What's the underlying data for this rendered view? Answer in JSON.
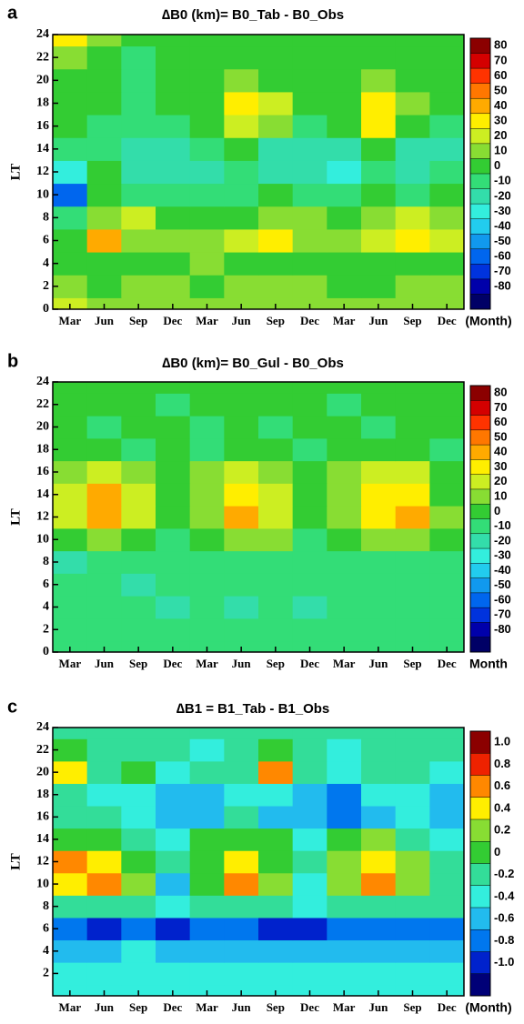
{
  "chart_data": [
    {
      "type": "contour",
      "panel_label": "a",
      "title": "∆B0 (km)= B0_Tab - B0_Obs",
      "ylabel": "LT",
      "xlabel": "(Month)",
      "categories": [
        "Mar",
        "Jun",
        "Sep",
        "Dec",
        "Mar",
        "Jun",
        "Sep",
        "Dec",
        "Mar",
        "Jun",
        "Sep",
        "Dec"
      ],
      "y": [
        0,
        2,
        4,
        6,
        8,
        10,
        12,
        14,
        16,
        18,
        20,
        22,
        24
      ],
      "z": [
        [
          20,
          10,
          10,
          10,
          10,
          10,
          10,
          10,
          10,
          10,
          10,
          10
        ],
        [
          10,
          0,
          10,
          10,
          0,
          10,
          10,
          10,
          0,
          0,
          10,
          10
        ],
        [
          0,
          0,
          0,
          0,
          10,
          0,
          0,
          0,
          0,
          0,
          0,
          0
        ],
        [
          0,
          40,
          10,
          10,
          10,
          20,
          30,
          10,
          10,
          20,
          30,
          20
        ],
        [
          -10,
          10,
          20,
          0,
          0,
          0,
          10,
          10,
          0,
          10,
          20,
          10
        ],
        [
          -60,
          0,
          -10,
          -10,
          -10,
          -10,
          0,
          -10,
          -10,
          0,
          -10,
          0
        ],
        [
          -30,
          0,
          -20,
          -20,
          -20,
          -10,
          -20,
          -20,
          -30,
          -10,
          -20,
          -10
        ],
        [
          -10,
          -10,
          -20,
          -20,
          -10,
          0,
          -20,
          -20,
          -20,
          0,
          -20,
          -20
        ],
        [
          0,
          -10,
          -10,
          -10,
          0,
          20,
          10,
          -10,
          0,
          30,
          0,
          -10
        ],
        [
          0,
          0,
          -10,
          0,
          0,
          30,
          20,
          0,
          0,
          30,
          10,
          0
        ],
        [
          0,
          0,
          -10,
          0,
          0,
          10,
          0,
          0,
          0,
          10,
          0,
          0
        ],
        [
          10,
          0,
          -10,
          0,
          0,
          0,
          0,
          0,
          0,
          0,
          0,
          0
        ],
        [
          30,
          10,
          0,
          0,
          0,
          0,
          0,
          0,
          0,
          0,
          0,
          0
        ]
      ],
      "ylim": [
        0,
        24
      ],
      "yticks": [
        0,
        2,
        4,
        6,
        8,
        10,
        12,
        14,
        16,
        18,
        20,
        22,
        24
      ],
      "colorbar": {
        "ticks": [
          80,
          70,
          60,
          50,
          40,
          30,
          20,
          10,
          0,
          -10,
          -20,
          -30,
          -40,
          -50,
          -60,
          -70,
          -80
        ],
        "colors": [
          "#8b0000",
          "#d40000",
          "#ff3300",
          "#ff7700",
          "#ffaa00",
          "#ffee00",
          "#ccee22",
          "#88dd33",
          "#33cc33",
          "#33dd77",
          "#33ddaa",
          "#33eedd",
          "#22ccee",
          "#1199ee",
          "#0066ee",
          "#0033dd",
          "#0000aa",
          "#000066"
        ]
      }
    },
    {
      "type": "contour",
      "panel_label": "b",
      "title": "∆B0 (km)= B0_Gul - B0_Obs",
      "ylabel": "LT",
      "xlabel": "Month",
      "categories": [
        "Mar",
        "Jun",
        "Sep",
        "Dec",
        "Mar",
        "Jun",
        "Sep",
        "Dec",
        "Mar",
        "Jun",
        "Sep",
        "Dec"
      ],
      "y": [
        0,
        2,
        4,
        6,
        8,
        10,
        12,
        14,
        16,
        18,
        20,
        22,
        24
      ],
      "z": [
        [
          -10,
          -10,
          -10,
          -10,
          -10,
          -10,
          -10,
          -10,
          -10,
          -10,
          -10,
          -10
        ],
        [
          -10,
          -10,
          -10,
          -10,
          -10,
          -10,
          -10,
          -10,
          -10,
          -10,
          -10,
          -10
        ],
        [
          -10,
          -10,
          -10,
          -20,
          -10,
          -20,
          -10,
          -20,
          -10,
          -10,
          -10,
          -10
        ],
        [
          -10,
          -10,
          -20,
          -10,
          -10,
          -10,
          -10,
          -10,
          -10,
          -10,
          -10,
          -10
        ],
        [
          -20,
          -10,
          -10,
          -10,
          -10,
          -10,
          -10,
          -10,
          -10,
          -10,
          -10,
          -10
        ],
        [
          0,
          10,
          0,
          -10,
          0,
          10,
          10,
          -10,
          0,
          10,
          10,
          0
        ],
        [
          20,
          40,
          20,
          0,
          10,
          40,
          20,
          0,
          10,
          30,
          40,
          10
        ],
        [
          20,
          40,
          20,
          0,
          10,
          30,
          20,
          0,
          10,
          30,
          30,
          0
        ],
        [
          10,
          20,
          10,
          0,
          10,
          20,
          10,
          0,
          10,
          20,
          20,
          0
        ],
        [
          0,
          0,
          -10,
          0,
          -10,
          0,
          0,
          -10,
          0,
          0,
          0,
          -10
        ],
        [
          0,
          -10,
          0,
          0,
          -10,
          0,
          -10,
          0,
          0,
          -10,
          0,
          0
        ],
        [
          0,
          0,
          0,
          -10,
          0,
          0,
          0,
          0,
          -10,
          0,
          0,
          0
        ],
        [
          0,
          0,
          0,
          0,
          0,
          0,
          0,
          0,
          0,
          0,
          0,
          0
        ]
      ],
      "ylim": [
        0,
        24
      ],
      "yticks": [
        0,
        2,
        4,
        6,
        8,
        10,
        12,
        14,
        16,
        18,
        20,
        22,
        24
      ],
      "colorbar": {
        "ticks": [
          80,
          70,
          60,
          50,
          40,
          30,
          20,
          10,
          0,
          -10,
          -20,
          -30,
          -40,
          -50,
          -60,
          -70,
          -80
        ],
        "colors": [
          "#8b0000",
          "#d40000",
          "#ff3300",
          "#ff7700",
          "#ffaa00",
          "#ffee00",
          "#ccee22",
          "#88dd33",
          "#33cc33",
          "#33dd77",
          "#33ddaa",
          "#33eedd",
          "#22ccee",
          "#1199ee",
          "#0066ee",
          "#0033dd",
          "#0000aa",
          "#000066"
        ]
      }
    },
    {
      "type": "contour",
      "panel_label": "c",
      "title": "∆B1 = B1_Tab - B1_Obs",
      "ylabel": "LT",
      "xlabel": "(Month)",
      "categories": [
        "Mar",
        "Jun",
        "Sep",
        "Dec",
        "Mar",
        "Jun",
        "Sep",
        "Dec",
        "Mar",
        "Jun",
        "Sep",
        "Dec"
      ],
      "y": [
        0,
        2,
        4,
        6,
        8,
        10,
        12,
        14,
        16,
        18,
        20,
        22,
        24
      ],
      "z": [
        [
          -0.3,
          -0.3,
          -0.3,
          -0.3,
          -0.3,
          -0.3,
          -0.3,
          -0.3,
          -0.3,
          -0.3,
          -0.3,
          -0.3
        ],
        [
          -0.3,
          -0.4,
          -0.3,
          -0.3,
          -0.3,
          -0.3,
          -0.3,
          -0.3,
          -0.3,
          -0.3,
          -0.3,
          -0.3
        ],
        [
          -0.5,
          -0.5,
          -0.4,
          -0.5,
          -0.5,
          -0.5,
          -0.6,
          -0.5,
          -0.5,
          -0.5,
          -0.5,
          -0.5
        ],
        [
          -0.7,
          -0.9,
          -0.7,
          -0.9,
          -0.8,
          -0.7,
          -0.9,
          -0.9,
          -0.8,
          -0.7,
          -0.7,
          -0.7
        ],
        [
          -0.1,
          -0.1,
          -0.2,
          -0.4,
          -0.1,
          -0.1,
          -0.2,
          -0.3,
          -0.1,
          -0.1,
          -0.2,
          -0.2
        ],
        [
          0.5,
          0.7,
          0.2,
          -0.5,
          0.1,
          0.6,
          0.2,
          -0.3,
          0.2,
          0.7,
          0.3,
          -0.1
        ],
        [
          0.7,
          0.5,
          0.1,
          -0.2,
          0.1,
          0.4,
          0.1,
          -0.2,
          0.2,
          0.5,
          0.2,
          -0.2
        ],
        [
          0.1,
          0.1,
          -0.1,
          -0.3,
          0.1,
          0.1,
          0.1,
          -0.3,
          0.1,
          0.2,
          -0.1,
          -0.3
        ],
        [
          -0.2,
          -0.2,
          -0.3,
          -0.6,
          -0.5,
          -0.2,
          -0.5,
          -0.6,
          -0.7,
          -0.5,
          -0.3,
          -0.5
        ],
        [
          -0.1,
          -0.3,
          -0.3,
          -0.5,
          -0.5,
          -0.4,
          -0.3,
          -0.5,
          -0.7,
          -0.4,
          -0.3,
          -0.6
        ],
        [
          0.5,
          -0.2,
          0.1,
          -0.3,
          -0.2,
          -0.1,
          0.6,
          -0.2,
          -0.3,
          -0.2,
          -0.2,
          -0.3
        ],
        [
          0.1,
          -0.2,
          -0.1,
          -0.2,
          -0.3,
          -0.2,
          0.1,
          -0.2,
          -0.3,
          -0.2,
          -0.2,
          -0.2
        ],
        [
          -0.1,
          -0.2,
          -0.2,
          -0.2,
          -0.2,
          -0.2,
          -0.2,
          -0.2,
          -0.2,
          -0.2,
          -0.2,
          -0.2
        ]
      ],
      "ylim": [
        0,
        24
      ],
      "yticks": [
        2,
        4,
        6,
        8,
        10,
        12,
        14,
        16,
        18,
        20,
        22,
        24
      ],
      "colorbar": {
        "ticks": [
          {
            "value": 1,
            "label": "1.0"
          },
          0.8,
          0.6,
          0.4,
          0.2,
          0,
          -0.2,
          -0.4,
          -0.6,
          -0.8,
          {
            "value": -1,
            "label": "-1.0"
          }
        ],
        "colors": [
          "#8b0000",
          "#ee2200",
          "#ff8800",
          "#ffee00",
          "#88dd33",
          "#33cc33",
          "#33dd99",
          "#33eedd",
          "#22bbee",
          "#0077ee",
          "#0022cc",
          "#000077"
        ]
      }
    }
  ]
}
